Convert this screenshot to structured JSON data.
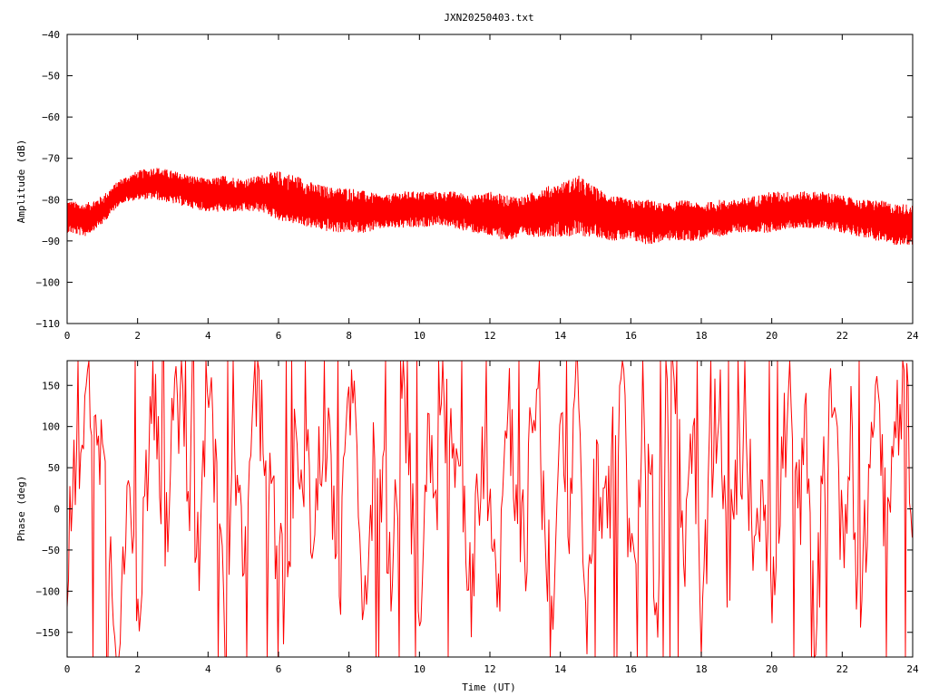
{
  "title": "JXN20250403.txt",
  "chart_data": [
    {
      "type": "line",
      "panel": "amplitude",
      "ylabel": "Amplitude (dB)",
      "xlabel": "",
      "xlim": [
        0,
        24
      ],
      "ylim": [
        -110,
        -40
      ],
      "xticks": [
        0,
        2,
        4,
        6,
        8,
        10,
        12,
        14,
        16,
        18,
        20,
        22,
        24
      ],
      "yticks": [
        -40,
        -50,
        -60,
        -70,
        -80,
        -90,
        -100,
        -110
      ],
      "grid": false,
      "color": "#ff0000",
      "series": [
        {
          "x": [
            0,
            0.5,
            1,
            1.5,
            2,
            2.5,
            3,
            3.5,
            4,
            4.5,
            5,
            5.5,
            6,
            6.5,
            7,
            7.5,
            8,
            8.5,
            9,
            9.5,
            10,
            10.5,
            11,
            11.5,
            12,
            12.5,
            13,
            13.5,
            14,
            14.5,
            15,
            15.5,
            16,
            16.5,
            17,
            17.5,
            18,
            18.5,
            19,
            19.5,
            20,
            20.5,
            21,
            21.5,
            22,
            22.5,
            23,
            23.5,
            24
          ],
          "center": [
            -84,
            -85,
            -83,
            -78,
            -77,
            -76,
            -77,
            -78,
            -79,
            -79,
            -79,
            -78,
            -80,
            -81,
            -82,
            -82,
            -83,
            -83,
            -83,
            -82,
            -82,
            -82,
            -82,
            -83,
            -83,
            -84,
            -84,
            -83,
            -82,
            -82,
            -83,
            -84,
            -85,
            -85,
            -85,
            -85,
            -85,
            -85,
            -84,
            -84,
            -83,
            -83,
            -83,
            -83,
            -83,
            -84,
            -85,
            -86,
            -86
          ],
          "upper": [
            -80,
            -81,
            -79,
            -75,
            -73,
            -72,
            -73,
            -74,
            -75,
            -74,
            -75,
            -74,
            -73,
            -74,
            -76,
            -77,
            -77,
            -78,
            -79,
            -78,
            -78,
            -78,
            -78,
            -79,
            -78,
            -79,
            -79,
            -77,
            -76,
            -74,
            -77,
            -79,
            -80,
            -80,
            -81,
            -80,
            -81,
            -80,
            -80,
            -79,
            -78,
            -78,
            -78,
            -78,
            -79,
            -80,
            -80,
            -81,
            -81
          ],
          "lower": [
            -88,
            -89,
            -86,
            -81,
            -80,
            -80,
            -81,
            -82,
            -83,
            -83,
            -83,
            -83,
            -85,
            -86,
            -87,
            -88,
            -88,
            -88,
            -87,
            -87,
            -87,
            -86,
            -87,
            -88,
            -89,
            -90,
            -89,
            -89,
            -89,
            -89,
            -89,
            -90,
            -90,
            -91,
            -90,
            -90,
            -90,
            -89,
            -88,
            -88,
            -88,
            -87,
            -87,
            -87,
            -88,
            -89,
            -90,
            -91,
            -91
          ]
        }
      ]
    },
    {
      "type": "line",
      "panel": "phase",
      "ylabel": "Phase (deg)",
      "xlabel": "Time (UT)",
      "xlim": [
        0,
        24
      ],
      "ylim": [
        -180,
        180
      ],
      "xticks": [
        0,
        2,
        4,
        6,
        8,
        10,
        12,
        14,
        16,
        18,
        20,
        22,
        24
      ],
      "yticks": [
        150,
        100,
        50,
        0,
        -50,
        -100,
        -150
      ],
      "grid": false,
      "color": "#ff0000",
      "series": [
        {
          "x": [
            0,
            0.25,
            0.5,
            0.75,
            1,
            1.25,
            1.5,
            1.75,
            2,
            2.25,
            2.5,
            2.75,
            3,
            3.25,
            3.5,
            3.75,
            4,
            4.25,
            4.5,
            4.75,
            5,
            5.25,
            5.5,
            5.75,
            6,
            6.25,
            6.5,
            6.75,
            7,
            7.25,
            7.5,
            7.75,
            8,
            8.25,
            8.5,
            8.75,
            9,
            9.25,
            9.5,
            9.75,
            10,
            10.25,
            10.5,
            10.75,
            11,
            11.25,
            11.5,
            11.75,
            12,
            12.25,
            12.5,
            12.75,
            13,
            13.25,
            13.5,
            13.75,
            14,
            14.25,
            14.5,
            14.75,
            15,
            15.25,
            15.5,
            15.75,
            16,
            16.25,
            16.5,
            16.75,
            17,
            17.25,
            17.5,
            17.75,
            18,
            18.25,
            18.5,
            18.75,
            19,
            19.25,
            19.5,
            19.75,
            20,
            20.25,
            20.5,
            20.75,
            21,
            21.25,
            21.5,
            21.75,
            22,
            22.25,
            22.5,
            22.75,
            23,
            23.25,
            23.5,
            23.75,
            24
          ],
          "y": [
            -60,
            40,
            120,
            170,
            60,
            -80,
            -170,
            100,
            -120,
            20,
            160,
            -40,
            90,
            130,
            30,
            -60,
            150,
            40,
            -170,
            60,
            -90,
            170,
            120,
            20,
            -40,
            -160,
            110,
            60,
            -20,
            100,
            30,
            -80,
            140,
            50,
            -170,
            120,
            20,
            -90,
            160,
            30,
            -150,
            100,
            40,
            120,
            60,
            -20,
            -100,
            80,
            40,
            -100,
            150,
            30,
            -60,
            160,
            20,
            -120,
            80,
            -30,
            150,
            -170,
            100,
            -40,
            60,
            170,
            -100,
            20,
            140,
            -160,
            80,
            170,
            -60,
            120,
            -170,
            40,
            160,
            -80,
            20,
            100,
            -40,
            60,
            -130,
            30,
            150,
            -20,
            100,
            -150,
            60,
            170,
            -60,
            120,
            -170,
            40,
            160,
            -40,
            100,
            170,
            20
          ]
        }
      ]
    }
  ]
}
